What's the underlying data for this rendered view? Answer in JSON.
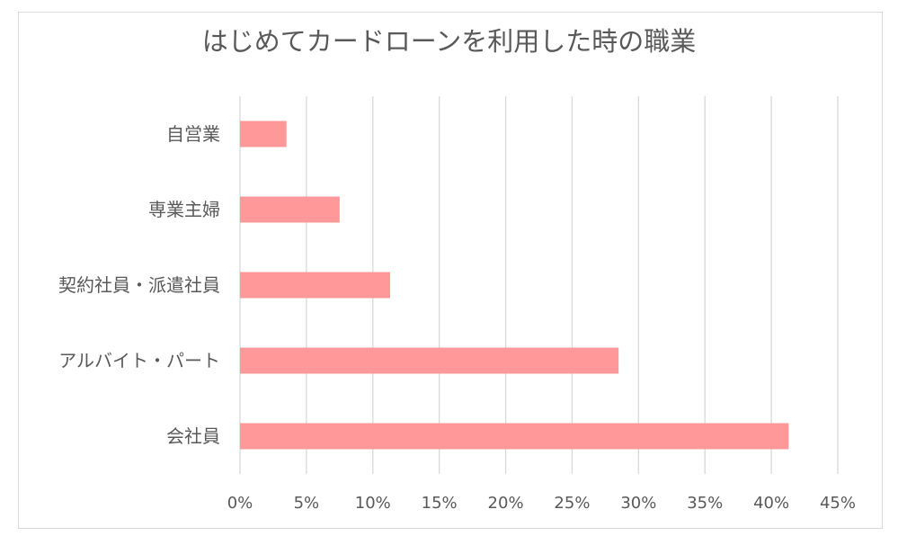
{
  "chart_data": {
    "type": "bar",
    "orientation": "horizontal",
    "title": "はじめてカードローンを利用した時の職業",
    "categories": [
      "自営業",
      "専業主婦",
      "契約社員・派遣社員",
      "アルバイト・パート",
      "会社員"
    ],
    "values": [
      3.5,
      7.5,
      11.3,
      28.5,
      41.3
    ],
    "value_unit": "%",
    "xlim": [
      0,
      45
    ],
    "x_ticks": [
      "0%",
      "5%",
      "10%",
      "15%",
      "20%",
      "25%",
      "30%",
      "35%",
      "40%",
      "45%"
    ],
    "grid": true,
    "legend": "none",
    "bar_color": "#ff9999",
    "grid_color": "#d9d9d9",
    "text_color": "#595959"
  }
}
